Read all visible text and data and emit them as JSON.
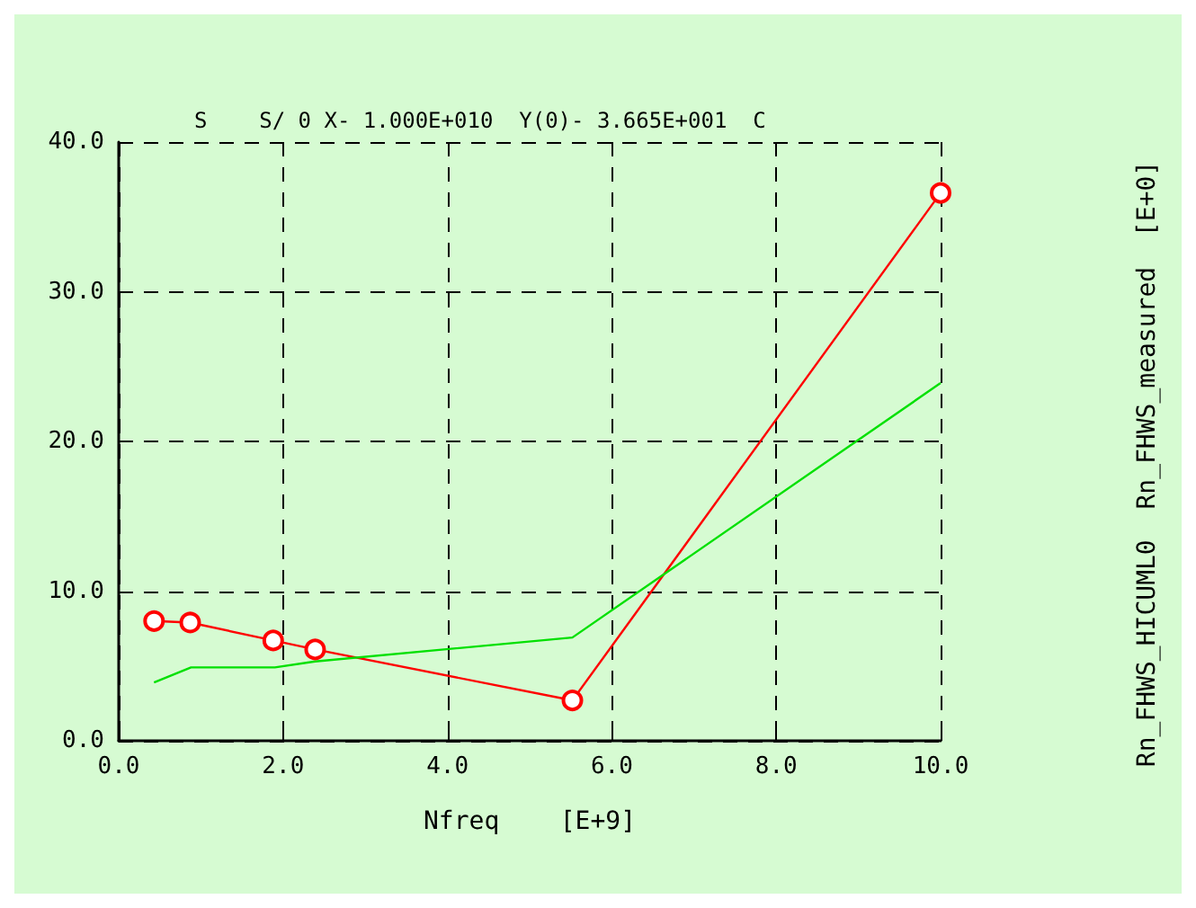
{
  "chart_data": {
    "type": "line",
    "title": "S    S/ 0 X- 1.000E+010  Y(0)- 3.665E+001  C",
    "xlabel": "Nfreq    [E+9]",
    "annotations": [
      "Rn_FHWS_HICUML0  Rn_FHWS_measured  [E+0]"
    ],
    "series": [
      {
        "color": "#ff0000",
        "marker": "circle",
        "x": [
          0.43,
          0.87,
          1.88,
          2.39,
          5.52,
          10
        ],
        "values": [
          8.0,
          7.9,
          6.7,
          6.1,
          2.7,
          36.6
        ]
      },
      {
        "color": "#00e000",
        "marker": "none",
        "x": [
          0.43,
          0.88,
          1.9,
          2.39,
          5.52,
          10
        ],
        "values": [
          3.9,
          4.9,
          4.9,
          5.3,
          6.9,
          23.9
        ]
      }
    ],
    "xlim": [
      0,
      10
    ],
    "ylim": [
      0,
      40
    ],
    "xticks": [
      {
        "value": 0,
        "label": "0.0"
      },
      {
        "value": 2,
        "label": "2.0"
      },
      {
        "value": 4,
        "label": "4.0"
      },
      {
        "value": 6,
        "label": "6.0"
      },
      {
        "value": 8,
        "label": "8.0"
      },
      {
        "value": 10,
        "label": "10.0"
      }
    ],
    "yticks": [
      {
        "value": 0,
        "label": "0.0"
      },
      {
        "value": 10,
        "label": "10.0"
      },
      {
        "value": 20,
        "label": "20.0"
      },
      {
        "value": 30,
        "label": "30.0"
      },
      {
        "value": 40,
        "label": "40.0"
      }
    ],
    "grid": true
  }
}
